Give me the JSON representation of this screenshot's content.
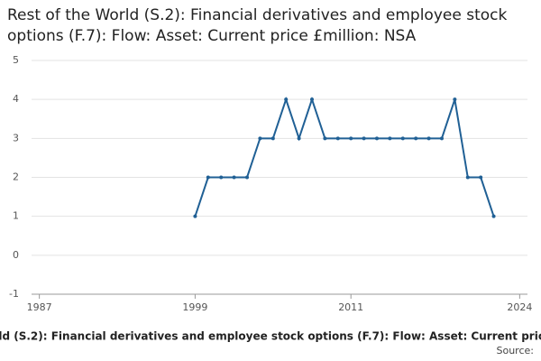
{
  "chart_data": {
    "type": "line",
    "title": "Rest of the World (S.2): Financial derivatives and employee stock options (F.7): Flow: Asset: Current price £million: NSA",
    "source": "Source:",
    "x": [
      1999,
      2000,
      2001,
      2002,
      2003,
      2004,
      2005,
      2006,
      2007,
      2008,
      2009,
      2010,
      2011,
      2012,
      2013,
      2014,
      2015,
      2016,
      2017,
      2018,
      2019,
      2020,
      2021,
      2022
    ],
    "series": [
      {
        "color": "#206095",
        "values": [
          1,
          2,
          2,
          2,
          2,
          3,
          3,
          4,
          3,
          4,
          3,
          3,
          3,
          3,
          3,
          3,
          3,
          3,
          3,
          3,
          4,
          2,
          2,
          1
        ]
      }
    ],
    "xlim": [
      1986.4,
      2024.6
    ],
    "xticks": [
      1987,
      1999,
      2011,
      2024
    ],
    "ylim": [
      -1,
      5
    ],
    "yticks": [
      -1,
      0,
      1,
      2,
      3,
      4,
      5
    ],
    "grid": true
  }
}
